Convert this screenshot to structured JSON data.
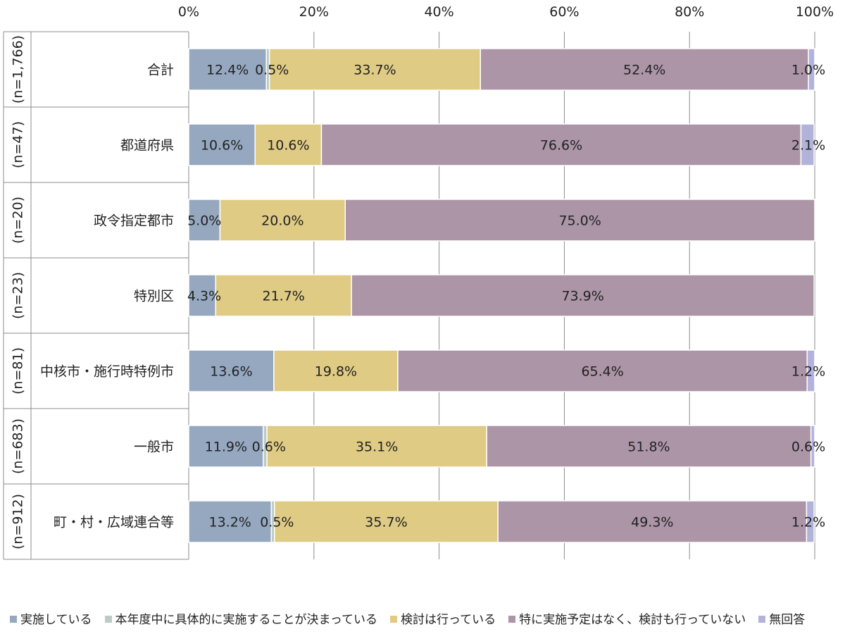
{
  "chart_data": {
    "type": "bar",
    "orientation": "horizontal",
    "stacked": true,
    "percent": true,
    "xlim": [
      0,
      100
    ],
    "x_ticks": [
      "0%",
      "20%",
      "40%",
      "60%",
      "80%",
      "100%"
    ],
    "grid": true,
    "legend_position": "bottom",
    "categories": [
      "合計",
      "都道府県",
      "政令指定都市",
      "特別区",
      "中核市・施行時特例市",
      "一般市",
      "町・村・広域連合等"
    ],
    "sample_sizes": [
      "(n=1,766)",
      "(n=47)",
      "(n=20)",
      "(n=23)",
      "(n=81)",
      "(n=683)",
      "(n=912)"
    ],
    "series": [
      {
        "name": "実施している",
        "color": "#96A8C0",
        "values": [
          12.4,
          10.6,
          5.0,
          4.3,
          13.6,
          11.9,
          13.2
        ],
        "labels": [
          "12.4%",
          "10.6%",
          "5.0%",
          "4.3%",
          "13.6%",
          "11.9%",
          "13.2%"
        ]
      },
      {
        "name": "本年度中に具体的に実施することが決まっている",
        "color": "#BCCBC4",
        "values": [
          0.5,
          0.0,
          0.0,
          0.0,
          0.0,
          0.6,
          0.5
        ],
        "labels": [
          "0.5%",
          "",
          "",
          "",
          "",
          "0.6%",
          "0.5%"
        ]
      },
      {
        "name": "検討は行っている",
        "color": "#DFCB84",
        "values": [
          33.7,
          10.6,
          20.0,
          21.7,
          19.8,
          35.1,
          35.7
        ],
        "labels": [
          "33.7%",
          "10.6%",
          "20.0%",
          "21.7%",
          "19.8%",
          "35.1%",
          "35.7%"
        ]
      },
      {
        "name": "特に実施予定はなく、検討も行っていない",
        "color": "#AC95A7",
        "values": [
          52.4,
          76.6,
          75.0,
          73.9,
          65.4,
          51.8,
          49.3
        ],
        "labels": [
          "52.4%",
          "76.6%",
          "75.0%",
          "73.9%",
          "65.4%",
          "51.8%",
          "49.3%"
        ]
      },
      {
        "name": "無回答",
        "color": "#B1B3DB",
        "values": [
          1.0,
          2.1,
          0.0,
          0.0,
          1.2,
          0.6,
          1.2
        ],
        "labels": [
          "1.0%",
          "2.1%",
          "",
          "",
          "1.2%",
          "0.6%",
          "1.2%"
        ]
      }
    ]
  }
}
